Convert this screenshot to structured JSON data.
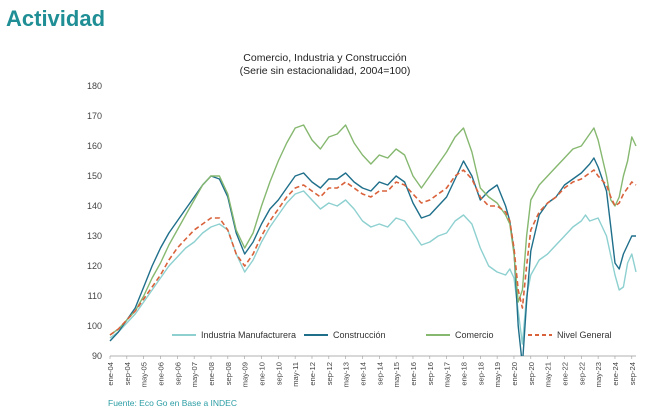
{
  "slide": {
    "title": "Actividad",
    "source": "Fuente: Eco Go en Base a INDEC"
  },
  "chart_data": {
    "type": "line",
    "title": "Comercio, Industria y Construcción",
    "subtitle": "(Serie sin estacionalidad, 2004=100)",
    "ylim": [
      90,
      180
    ],
    "yticks": [
      90,
      100,
      110,
      120,
      130,
      140,
      150,
      160,
      170,
      180
    ],
    "xlim": [
      0,
      246
    ],
    "grid": false,
    "legend": "bottom",
    "x_ticks": [
      {
        "label": "ene-04",
        "m": 0
      },
      {
        "label": "sep-04",
        "m": 8
      },
      {
        "label": "may-05",
        "m": 16
      },
      {
        "label": "ene-06",
        "m": 24
      },
      {
        "label": "sep-06",
        "m": 32
      },
      {
        "label": "may-07",
        "m": 40
      },
      {
        "label": "ene-08",
        "m": 48
      },
      {
        "label": "sep-08",
        "m": 56
      },
      {
        "label": "may-09",
        "m": 64
      },
      {
        "label": "ene-10",
        "m": 72
      },
      {
        "label": "sep-10",
        "m": 80
      },
      {
        "label": "may-11",
        "m": 88
      },
      {
        "label": "ene-12",
        "m": 96
      },
      {
        "label": "sep-12",
        "m": 104
      },
      {
        "label": "may-13",
        "m": 112
      },
      {
        "label": "ene-14",
        "m": 120
      },
      {
        "label": "sep-14",
        "m": 128
      },
      {
        "label": "may-15",
        "m": 136
      },
      {
        "label": "ene-16",
        "m": 144
      },
      {
        "label": "sep-16",
        "m": 152
      },
      {
        "label": "may-17",
        "m": 160
      },
      {
        "label": "ene-18",
        "m": 168
      },
      {
        "label": "sep-18",
        "m": 176
      },
      {
        "label": "may-19",
        "m": 184
      },
      {
        "label": "ene-20",
        "m": 192
      },
      {
        "label": "sep-20",
        "m": 200
      },
      {
        "label": "may-21",
        "m": 208
      },
      {
        "label": "ene-22",
        "m": 216
      },
      {
        "label": "sep-22",
        "m": 224
      },
      {
        "label": "may-23",
        "m": 232
      },
      {
        "label": "ene-24",
        "m": 240
      },
      {
        "label": "sep-24",
        "m": 248
      }
    ],
    "series": [
      {
        "name": "Industria Manufacturera",
        "color": "#8ed0d0",
        "dash": "",
        "points": [
          [
            0,
            96
          ],
          [
            4,
            98
          ],
          [
            8,
            101
          ],
          [
            12,
            104
          ],
          [
            16,
            108
          ],
          [
            20,
            112
          ],
          [
            24,
            116
          ],
          [
            28,
            120
          ],
          [
            32,
            123
          ],
          [
            36,
            126
          ],
          [
            40,
            128
          ],
          [
            44,
            131
          ],
          [
            48,
            133
          ],
          [
            52,
            134
          ],
          [
            56,
            132
          ],
          [
            60,
            124
          ],
          [
            64,
            118
          ],
          [
            68,
            122
          ],
          [
            72,
            128
          ],
          [
            76,
            133
          ],
          [
            80,
            137
          ],
          [
            84,
            141
          ],
          [
            88,
            144
          ],
          [
            92,
            145
          ],
          [
            96,
            142
          ],
          [
            100,
            139
          ],
          [
            104,
            141
          ],
          [
            108,
            140
          ],
          [
            112,
            142
          ],
          [
            116,
            139
          ],
          [
            120,
            135
          ],
          [
            124,
            133
          ],
          [
            128,
            134
          ],
          [
            132,
            133
          ],
          [
            136,
            136
          ],
          [
            140,
            135
          ],
          [
            144,
            131
          ],
          [
            148,
            127
          ],
          [
            152,
            128
          ],
          [
            156,
            130
          ],
          [
            160,
            131
          ],
          [
            164,
            135
          ],
          [
            168,
            137
          ],
          [
            172,
            134
          ],
          [
            176,
            126
          ],
          [
            180,
            120
          ],
          [
            184,
            118
          ],
          [
            188,
            117
          ],
          [
            190,
            119
          ],
          [
            192,
            116
          ],
          [
            194,
            105
          ],
          [
            196,
            94
          ],
          [
            198,
            110
          ],
          [
            200,
            117
          ],
          [
            204,
            122
          ],
          [
            208,
            124
          ],
          [
            212,
            127
          ],
          [
            216,
            130
          ],
          [
            220,
            133
          ],
          [
            224,
            135
          ],
          [
            226,
            137
          ],
          [
            228,
            135
          ],
          [
            232,
            136
          ],
          [
            236,
            130
          ],
          [
            240,
            117
          ],
          [
            242,
            112
          ],
          [
            244,
            113
          ],
          [
            246,
            121
          ],
          [
            248,
            124
          ],
          [
            250,
            118
          ]
        ]
      },
      {
        "name": "Construcción",
        "color": "#1f6f8b",
        "dash": "",
        "points": [
          [
            0,
            95
          ],
          [
            4,
            98
          ],
          [
            8,
            102
          ],
          [
            12,
            106
          ],
          [
            16,
            113
          ],
          [
            20,
            120
          ],
          [
            24,
            126
          ],
          [
            28,
            131
          ],
          [
            32,
            135
          ],
          [
            36,
            139
          ],
          [
            40,
            143
          ],
          [
            44,
            147
          ],
          [
            48,
            150
          ],
          [
            52,
            149
          ],
          [
            56,
            143
          ],
          [
            60,
            131
          ],
          [
            64,
            124
          ],
          [
            68,
            128
          ],
          [
            72,
            134
          ],
          [
            76,
            139
          ],
          [
            80,
            142
          ],
          [
            84,
            146
          ],
          [
            88,
            150
          ],
          [
            92,
            151
          ],
          [
            96,
            148
          ],
          [
            100,
            146
          ],
          [
            104,
            149
          ],
          [
            108,
            149
          ],
          [
            112,
            151
          ],
          [
            116,
            148
          ],
          [
            120,
            146
          ],
          [
            124,
            145
          ],
          [
            128,
            148
          ],
          [
            132,
            147
          ],
          [
            136,
            150
          ],
          [
            140,
            148
          ],
          [
            144,
            141
          ],
          [
            148,
            136
          ],
          [
            152,
            137
          ],
          [
            156,
            140
          ],
          [
            160,
            143
          ],
          [
            164,
            149
          ],
          [
            168,
            155
          ],
          [
            172,
            150
          ],
          [
            176,
            142
          ],
          [
            180,
            145
          ],
          [
            184,
            147
          ],
          [
            188,
            140
          ],
          [
            190,
            135
          ],
          [
            192,
            125
          ],
          [
            194,
            100
          ],
          [
            196,
            87
          ],
          [
            198,
            108
          ],
          [
            200,
            125
          ],
          [
            204,
            137
          ],
          [
            208,
            141
          ],
          [
            212,
            143
          ],
          [
            216,
            147
          ],
          [
            220,
            149
          ],
          [
            224,
            151
          ],
          [
            228,
            154
          ],
          [
            230,
            156
          ],
          [
            232,
            153
          ],
          [
            236,
            145
          ],
          [
            238,
            133
          ],
          [
            240,
            121
          ],
          [
            242,
            119
          ],
          [
            244,
            124
          ],
          [
            246,
            127
          ],
          [
            248,
            130
          ],
          [
            250,
            130
          ]
        ]
      },
      {
        "name": "Comercio",
        "color": "#86b870",
        "dash": "",
        "points": [
          [
            0,
            97
          ],
          [
            4,
            99
          ],
          [
            8,
            102
          ],
          [
            12,
            105
          ],
          [
            16,
            110
          ],
          [
            20,
            116
          ],
          [
            24,
            121
          ],
          [
            28,
            127
          ],
          [
            32,
            132
          ],
          [
            36,
            137
          ],
          [
            40,
            142
          ],
          [
            44,
            147
          ],
          [
            48,
            150
          ],
          [
            52,
            150
          ],
          [
            56,
            144
          ],
          [
            60,
            132
          ],
          [
            64,
            126
          ],
          [
            68,
            131
          ],
          [
            72,
            140
          ],
          [
            76,
            148
          ],
          [
            80,
            155
          ],
          [
            84,
            161
          ],
          [
            88,
            166
          ],
          [
            92,
            167
          ],
          [
            96,
            162
          ],
          [
            100,
            159
          ],
          [
            104,
            163
          ],
          [
            108,
            164
          ],
          [
            112,
            167
          ],
          [
            116,
            161
          ],
          [
            120,
            157
          ],
          [
            124,
            154
          ],
          [
            128,
            157
          ],
          [
            132,
            156
          ],
          [
            136,
            159
          ],
          [
            140,
            157
          ],
          [
            144,
            150
          ],
          [
            148,
            146
          ],
          [
            152,
            150
          ],
          [
            156,
            154
          ],
          [
            160,
            158
          ],
          [
            164,
            163
          ],
          [
            168,
            166
          ],
          [
            172,
            158
          ],
          [
            176,
            146
          ],
          [
            180,
            143
          ],
          [
            184,
            141
          ],
          [
            188,
            137
          ],
          [
            190,
            134
          ],
          [
            192,
            124
          ],
          [
            194,
            108
          ],
          [
            196,
            112
          ],
          [
            198,
            130
          ],
          [
            200,
            142
          ],
          [
            204,
            147
          ],
          [
            208,
            150
          ],
          [
            212,
            153
          ],
          [
            216,
            156
          ],
          [
            220,
            159
          ],
          [
            224,
            160
          ],
          [
            228,
            164
          ],
          [
            230,
            166
          ],
          [
            232,
            162
          ],
          [
            236,
            150
          ],
          [
            238,
            142
          ],
          [
            240,
            140
          ],
          [
            242,
            143
          ],
          [
            244,
            150
          ],
          [
            246,
            155
          ],
          [
            248,
            163
          ],
          [
            250,
            160
          ]
        ]
      },
      {
        "name": "Nivel General",
        "color": "#d9623b",
        "dash": "5,3",
        "points": [
          [
            0,
            97
          ],
          [
            4,
            99
          ],
          [
            8,
            102
          ],
          [
            12,
            105
          ],
          [
            16,
            109
          ],
          [
            20,
            113
          ],
          [
            24,
            117
          ],
          [
            28,
            122
          ],
          [
            32,
            126
          ],
          [
            36,
            129
          ],
          [
            40,
            132
          ],
          [
            44,
            134
          ],
          [
            48,
            136
          ],
          [
            52,
            136
          ],
          [
            56,
            132
          ],
          [
            60,
            124
          ],
          [
            64,
            120
          ],
          [
            68,
            124
          ],
          [
            72,
            130
          ],
          [
            76,
            135
          ],
          [
            80,
            139
          ],
          [
            84,
            143
          ],
          [
            88,
            146
          ],
          [
            92,
            147
          ],
          [
            96,
            145
          ],
          [
            100,
            143
          ],
          [
            104,
            146
          ],
          [
            108,
            146
          ],
          [
            112,
            148
          ],
          [
            116,
            146
          ],
          [
            120,
            144
          ],
          [
            124,
            143
          ],
          [
            128,
            145
          ],
          [
            132,
            145
          ],
          [
            136,
            148
          ],
          [
            140,
            147
          ],
          [
            144,
            144
          ],
          [
            148,
            141
          ],
          [
            152,
            142
          ],
          [
            156,
            144
          ],
          [
            160,
            146
          ],
          [
            164,
            150
          ],
          [
            168,
            152
          ],
          [
            172,
            149
          ],
          [
            176,
            143
          ],
          [
            180,
            140
          ],
          [
            184,
            140
          ],
          [
            188,
            138
          ],
          [
            190,
            135
          ],
          [
            192,
            126
          ],
          [
            194,
            112
          ],
          [
            196,
            106
          ],
          [
            198,
            120
          ],
          [
            200,
            132
          ],
          [
            204,
            138
          ],
          [
            208,
            141
          ],
          [
            212,
            143
          ],
          [
            216,
            146
          ],
          [
            220,
            148
          ],
          [
            224,
            149
          ],
          [
            228,
            151
          ],
          [
            230,
            152
          ],
          [
            232,
            150
          ],
          [
            236,
            147
          ],
          [
            238,
            143
          ],
          [
            240,
            140
          ],
          [
            242,
            141
          ],
          [
            244,
            144
          ],
          [
            246,
            146
          ],
          [
            248,
            148
          ],
          [
            250,
            147
          ]
        ]
      }
    ]
  }
}
